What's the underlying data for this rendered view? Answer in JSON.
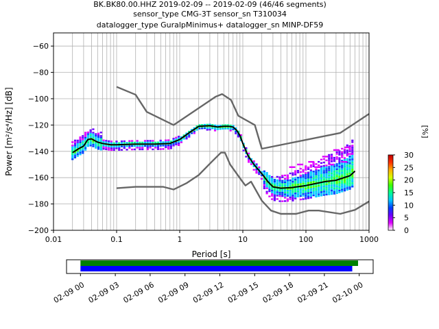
{
  "title_lines": [
    "BK.BK80.00.HHZ   2019-02-09 -- 2019-02-09  (46/46 segments)",
    "sensor_type CMG-3T sensor_sn T310034",
    "datalogger_type GuralpMinimus+ datalogger_sn MINP-DF59"
  ],
  "chart_data": {
    "type": "heatmap",
    "xlabel": "Period [s]",
    "ylabel": "Power [m²/s⁴/Hz] [dB]",
    "xscale": "log",
    "xlim": [
      0.01,
      1000
    ],
    "ylim": [
      -200,
      -50
    ],
    "xticks": [
      {
        "value": 0.01,
        "label": "0.01"
      },
      {
        "value": 0.1,
        "label": "0.1"
      },
      {
        "value": 1,
        "label": "1"
      },
      {
        "value": 10,
        "label": "10"
      },
      {
        "value": 100,
        "label": "100"
      },
      {
        "value": 1000,
        "label": "1000"
      }
    ],
    "yticks": [
      {
        "value": -60,
        "label": "−60"
      },
      {
        "value": -80,
        "label": "−80"
      },
      {
        "value": -100,
        "label": "−100"
      },
      {
        "value": -120,
        "label": "−120"
      },
      {
        "value": -140,
        "label": "−140"
      },
      {
        "value": -160,
        "label": "−160"
      },
      {
        "value": -180,
        "label": "−180"
      },
      {
        "value": -200,
        "label": "−200"
      }
    ],
    "grid": true,
    "series": [
      {
        "line_color": "#666666",
        "points": [
          [
            0.1,
            -91
          ],
          [
            0.2,
            -97
          ],
          [
            0.3,
            -110
          ],
          [
            0.8,
            -120
          ],
          [
            3.7,
            -98.5
          ],
          [
            4.7,
            -96.5
          ],
          [
            6.5,
            -101
          ],
          [
            8.5,
            -113
          ],
          [
            15.5,
            -120
          ],
          [
            20,
            -138
          ],
          [
            350,
            -126
          ],
          [
            1000,
            -111.5
          ]
        ]
      },
      {
        "line_color": "#666666",
        "points": [
          [
            0.1,
            -168
          ],
          [
            0.2,
            -167
          ],
          [
            0.55,
            -167
          ],
          [
            0.8,
            -169
          ],
          [
            1.3,
            -164
          ],
          [
            2,
            -158
          ],
          [
            3.2,
            -148
          ],
          [
            4.5,
            -141
          ],
          [
            5.2,
            -141
          ],
          [
            6.3,
            -150
          ],
          [
            9.5,
            -162
          ],
          [
            11,
            -166
          ],
          [
            13.5,
            -163
          ],
          [
            20,
            -177.5
          ],
          [
            28,
            -185
          ],
          [
            40,
            -187.5
          ],
          [
            70,
            -187.5
          ],
          [
            110,
            -185
          ],
          [
            160,
            -185
          ],
          [
            350,
            -187.5
          ],
          [
            600,
            -184.5
          ],
          [
            1000,
            -178
          ]
        ]
      },
      {
        "line_color": "#000000",
        "points": [
          [
            0.02,
            -141
          ],
          [
            0.025,
            -138
          ],
          [
            0.03,
            -136
          ],
          [
            0.035,
            -131
          ],
          [
            0.04,
            -130.5
          ],
          [
            0.05,
            -133
          ],
          [
            0.06,
            -134
          ],
          [
            0.08,
            -135
          ],
          [
            0.1,
            -135
          ],
          [
            0.2,
            -134.5
          ],
          [
            0.4,
            -134.5
          ],
          [
            0.7,
            -134
          ],
          [
            1,
            -131
          ],
          [
            1.5,
            -125
          ],
          [
            2,
            -121
          ],
          [
            3,
            -120.5
          ],
          [
            4,
            -121.5
          ],
          [
            5,
            -121
          ],
          [
            6,
            -121
          ],
          [
            7,
            -121.5
          ],
          [
            8,
            -124
          ],
          [
            9,
            -128
          ],
          [
            10,
            -134
          ],
          [
            12,
            -143
          ],
          [
            15,
            -150
          ],
          [
            20,
            -157
          ],
          [
            25,
            -163
          ],
          [
            30,
            -167
          ],
          [
            40,
            -168
          ],
          [
            60,
            -167.5
          ],
          [
            100,
            -166
          ],
          [
            200,
            -163
          ],
          [
            300,
            -162
          ],
          [
            500,
            -158.5
          ],
          [
            600,
            -155
          ]
        ]
      }
    ],
    "colorbar": {
      "label": "[%]",
      "min": 0,
      "max": 30,
      "ticks": [
        {
          "value": 0,
          "label": "0"
        },
        {
          "value": 5,
          "label": "5"
        },
        {
          "value": 10,
          "label": "10"
        },
        {
          "value": 15,
          "label": "15"
        },
        {
          "value": 20,
          "label": "20"
        },
        {
          "value": 25,
          "label": "25"
        },
        {
          "value": 30,
          "label": "30"
        }
      ],
      "colors": [
        "#ffffff",
        "#e000ff",
        "#6a00ff",
        "#0040ff",
        "#00c8ff",
        "#00ff90",
        "#40ff00",
        "#d8ff00",
        "#ffb000",
        "#ff3000",
        "#c00000"
      ]
    }
  },
  "time_axis": {
    "ticks": [
      "02-09 00",
      "02-09 03",
      "02-09 06",
      "02-09 09",
      "02-09 12",
      "02-09 15",
      "02-09 18",
      "02-09 21",
      "02-10 00"
    ],
    "bars": [
      {
        "color": "#008000",
        "start_hours": 0,
        "end_hours": 23.9
      },
      {
        "color": "#0000ff",
        "start_hours": 0,
        "end_hours": 23.4
      }
    ],
    "range_hours": [
      -1.2,
      25.2
    ]
  }
}
